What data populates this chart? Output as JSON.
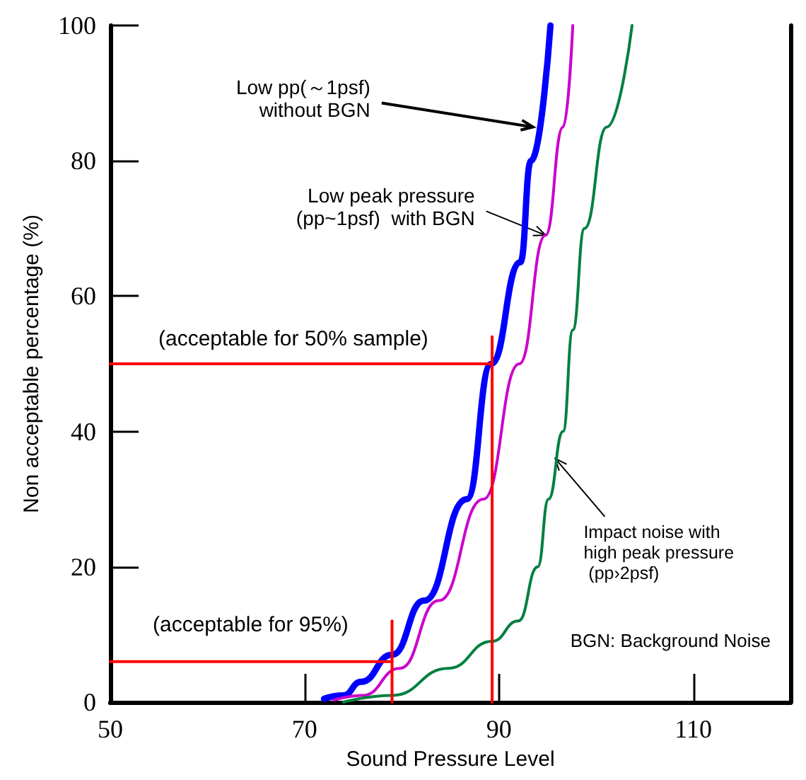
{
  "chart_data": {
    "type": "line",
    "xlabel": "Sound Pressure Level",
    "ylabel": "Non acceptable percentage (%)",
    "xlim": [
      50,
      120
    ],
    "xticks": [
      50,
      70,
      90,
      110
    ],
    "ylim": [
      0,
      100
    ],
    "yticks": [
      0,
      20,
      40,
      60,
      80,
      100
    ],
    "grid": false,
    "marker": "none",
    "line_style": "solid",
    "series": [
      {
        "color": "#0000ff",
        "x": [
          72,
          74,
          75.8,
          79,
          82.3,
          86.7,
          89.2,
          92.2,
          93.3,
          95.3
        ],
        "values": [
          0.5,
          1,
          3,
          7,
          15,
          30,
          50,
          65,
          80,
          100
        ]
      },
      {
        "color": "#cc00cc",
        "x": [
          73,
          76,
          79.8,
          83.8,
          88.4,
          92.1,
          94.8,
          96.6,
          97.6
        ],
        "values": [
          0.3,
          1,
          5,
          15,
          30,
          50,
          69,
          85,
          100
        ]
      },
      {
        "color": "#008040",
        "x": [
          74,
          79,
          84.8,
          89.3,
          92,
          94,
          95.1,
          96.6,
          97.6,
          98.8,
          101.1,
          103.7
        ],
        "values": [
          0,
          1,
          5,
          9,
          12,
          20,
          30,
          40,
          55,
          70,
          85,
          100
        ]
      },
      {
        "color": "#ff0000",
        "x": [
          50,
          89.3
        ],
        "values": [
          50,
          50
        ]
      },
      {
        "color": "#ff0000",
        "x": [
          89.3,
          89.3
        ],
        "values": [
          0,
          54
        ]
      },
      {
        "color": "#ff0000",
        "x": [
          50,
          79
        ],
        "values": [
          6,
          6
        ]
      },
      {
        "color": "#ff0000",
        "x": [
          79,
          79
        ],
        "values": [
          0,
          12
        ]
      }
    ],
    "annotations": [
      {
        "text": "Low pp(～1psf)\nwithout BGN",
        "x": 93.5,
        "y": 85
      },
      {
        "text": "Low peak pressure\n(pp~1psf)  with BGN",
        "x": 94.8,
        "y": 69
      },
      {
        "text": "Impact noise with\nhigh peak pressure\n (pp›2psf)",
        "x": 95.8,
        "y": 36
      },
      "(acceptable for 50% sample)",
      "(acceptable for 95%)",
      "BGN: Background Noise"
    ]
  }
}
